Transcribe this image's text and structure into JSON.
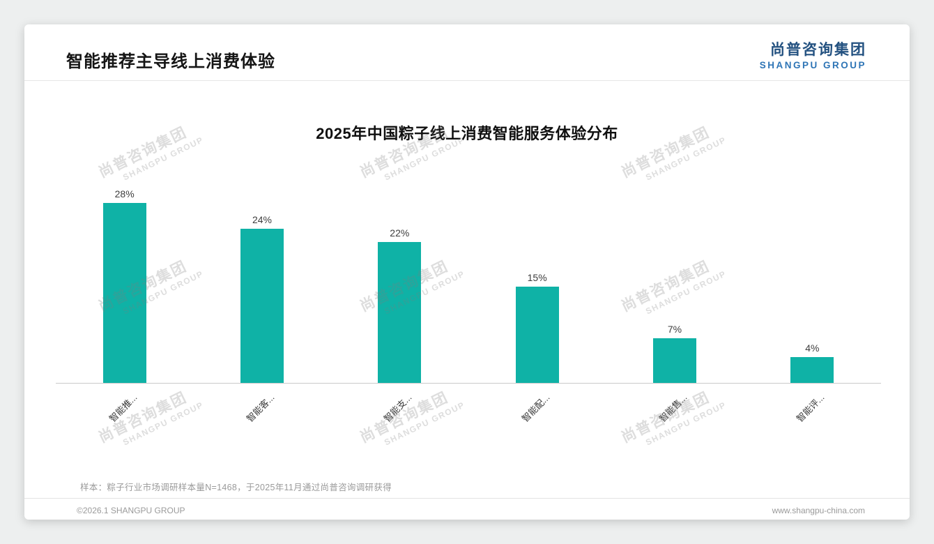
{
  "page": {
    "header_title": "智能推荐主导线上消费体验",
    "logo": {
      "cn": "尚普咨询集团",
      "en": "SHANGPU GROUP"
    },
    "watermark": {
      "cn": "尚普咨询集团",
      "en": "SHANGPU GROUP"
    },
    "footnote": "样本：粽子行业市场调研样本量N=1468，于2025年11月通过尚普咨询调研获得",
    "footer": {
      "copyright": "©2026.1 SHANGPU GROUP",
      "website": "www.shangpu-china.com"
    }
  },
  "chart_data": {
    "type": "bar",
    "title": "2025年中国粽子线上消费智能服务体验分布",
    "categories": [
      "智能推...",
      "智能客...",
      "智能支...",
      "智能配...",
      "智能售...",
      "智能评..."
    ],
    "values": [
      28,
      24,
      22,
      15,
      7,
      4
    ],
    "value_labels": [
      "28%",
      "24%",
      "22%",
      "15%",
      "7%",
      "4%"
    ],
    "unit": "%",
    "bar_color": "#0fb2a6",
    "ylim": [
      0,
      30
    ],
    "grid": false,
    "legend": false,
    "x_label_rotation": -45
  }
}
